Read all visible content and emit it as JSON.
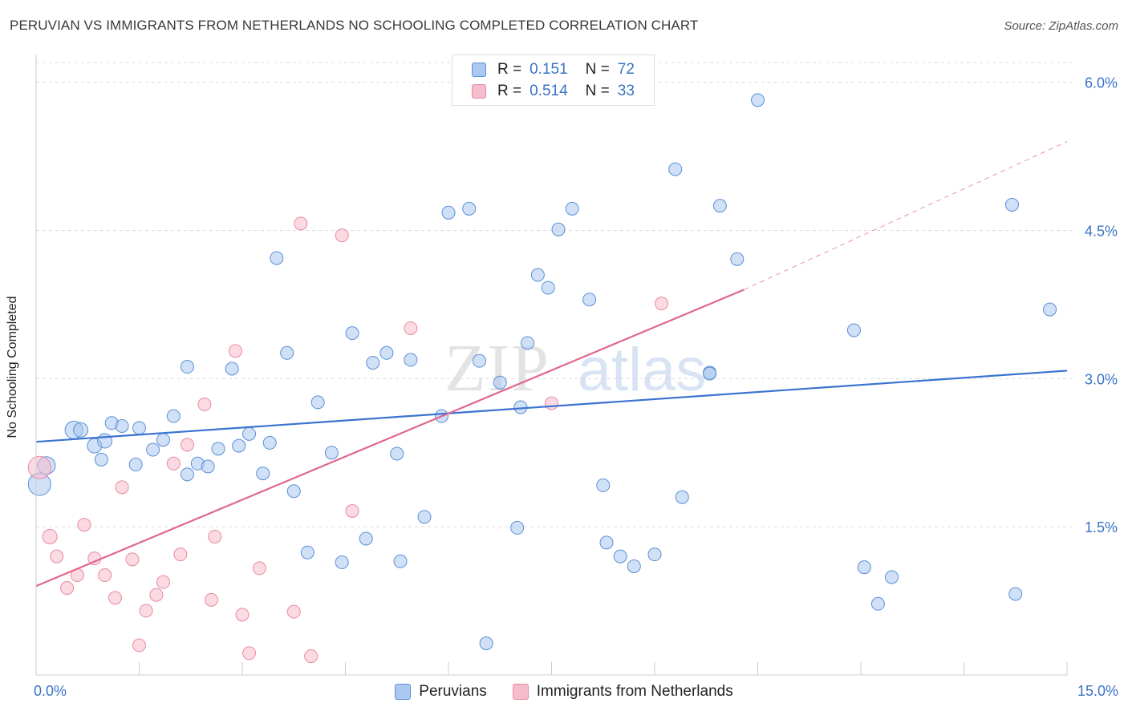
{
  "title": "PERUVIAN VS IMMIGRANTS FROM NETHERLANDS NO SCHOOLING COMPLETED CORRELATION CHART",
  "source": "Source: ZipAtlas.com",
  "watermark": {
    "zip": "ZIP",
    "atlas": "atlas"
  },
  "legend": {
    "rows": [
      {
        "r_label": "R =",
        "r_value": "0.151",
        "n_label": "N =",
        "n_value": "72",
        "fill": "#aac8f0",
        "stroke": "#5b8fd6"
      },
      {
        "r_label": "R =",
        "r_value": "0.514",
        "n_label": "N =",
        "n_value": "33",
        "fill": "#f7bccb",
        "stroke": "#e88aa3"
      }
    ]
  },
  "chart_data": {
    "type": "scatter",
    "xlabel": "",
    "ylabel": "No Schooling Completed",
    "xlim": [
      0,
      15
    ],
    "ylim": [
      0,
      6.2
    ],
    "x_tick_labels": [
      "0.0%",
      "15.0%"
    ],
    "y_ticks": [
      1.5,
      3.0,
      4.5,
      6.0
    ],
    "y_tick_labels": [
      "1.5%",
      "3.0%",
      "4.5%",
      "6.0%"
    ],
    "grid": true,
    "legend_position": "bottom-center",
    "series": [
      {
        "name": "Peruvians",
        "color": "#aac8f0",
        "stroke": "#5b8fd6",
        "line_color": "#3a73d0",
        "trend": {
          "x": [
            0.0,
            15.0
          ],
          "y": [
            2.36,
            3.08
          ],
          "dashed_from": null
        },
        "points": [
          {
            "x": 0.05,
            "y": 1.93,
            "s": 14
          },
          {
            "x": 0.15,
            "y": 2.12,
            "s": 11
          },
          {
            "x": 0.55,
            "y": 2.48,
            "s": 11
          },
          {
            "x": 0.65,
            "y": 2.48,
            "s": 9
          },
          {
            "x": 0.85,
            "y": 2.32,
            "s": 9
          },
          {
            "x": 1.0,
            "y": 2.37,
            "s": 9
          },
          {
            "x": 0.95,
            "y": 2.18,
            "s": 8
          },
          {
            "x": 1.1,
            "y": 2.55,
            "s": 8
          },
          {
            "x": 1.25,
            "y": 2.52,
            "s": 8
          },
          {
            "x": 1.45,
            "y": 2.13,
            "s": 8
          },
          {
            "x": 1.5,
            "y": 2.5,
            "s": 8
          },
          {
            "x": 1.7,
            "y": 2.28,
            "s": 8
          },
          {
            "x": 1.85,
            "y": 2.38,
            "s": 8
          },
          {
            "x": 2.0,
            "y": 2.62,
            "s": 8
          },
          {
            "x": 2.2,
            "y": 3.12,
            "s": 8
          },
          {
            "x": 2.2,
            "y": 2.03,
            "s": 8
          },
          {
            "x": 2.35,
            "y": 2.14,
            "s": 8
          },
          {
            "x": 2.5,
            "y": 2.11,
            "s": 8
          },
          {
            "x": 2.65,
            "y": 2.29,
            "s": 8
          },
          {
            "x": 2.85,
            "y": 3.1,
            "s": 8
          },
          {
            "x": 2.95,
            "y": 2.32,
            "s": 8
          },
          {
            "x": 3.1,
            "y": 2.44,
            "s": 8
          },
          {
            "x": 3.3,
            "y": 2.04,
            "s": 8
          },
          {
            "x": 3.4,
            "y": 2.35,
            "s": 8
          },
          {
            "x": 3.5,
            "y": 4.22,
            "s": 8
          },
          {
            "x": 3.65,
            "y": 3.26,
            "s": 8
          },
          {
            "x": 3.75,
            "y": 1.86,
            "s": 8
          },
          {
            "x": 3.95,
            "y": 1.24,
            "s": 8
          },
          {
            "x": 4.1,
            "y": 2.76,
            "s": 8
          },
          {
            "x": 4.3,
            "y": 2.25,
            "s": 8
          },
          {
            "x": 4.45,
            "y": 1.14,
            "s": 8
          },
          {
            "x": 4.6,
            "y": 3.46,
            "s": 8
          },
          {
            "x": 4.8,
            "y": 1.38,
            "s": 8
          },
          {
            "x": 4.9,
            "y": 3.16,
            "s": 8
          },
          {
            "x": 5.1,
            "y": 3.26,
            "s": 8
          },
          {
            "x": 5.25,
            "y": 2.24,
            "s": 8
          },
          {
            "x": 5.3,
            "y": 1.15,
            "s": 8
          },
          {
            "x": 5.45,
            "y": 3.19,
            "s": 8
          },
          {
            "x": 5.65,
            "y": 1.6,
            "s": 8
          },
          {
            "x": 5.9,
            "y": 2.62,
            "s": 8
          },
          {
            "x": 6.0,
            "y": 4.68,
            "s": 8
          },
          {
            "x": 6.3,
            "y": 4.72,
            "s": 8
          },
          {
            "x": 6.45,
            "y": 3.18,
            "s": 8
          },
          {
            "x": 6.55,
            "y": 0.32,
            "s": 8
          },
          {
            "x": 6.75,
            "y": 2.96,
            "s": 8
          },
          {
            "x": 7.0,
            "y": 1.49,
            "s": 8
          },
          {
            "x": 7.05,
            "y": 2.71,
            "s": 8
          },
          {
            "x": 7.15,
            "y": 3.36,
            "s": 8
          },
          {
            "x": 7.3,
            "y": 4.05,
            "s": 8
          },
          {
            "x": 7.45,
            "y": 3.92,
            "s": 8
          },
          {
            "x": 7.6,
            "y": 4.51,
            "s": 8
          },
          {
            "x": 7.8,
            "y": 4.72,
            "s": 8
          },
          {
            "x": 8.05,
            "y": 3.8,
            "s": 8
          },
          {
            "x": 8.25,
            "y": 1.92,
            "s": 8
          },
          {
            "x": 8.3,
            "y": 1.34,
            "s": 8
          },
          {
            "x": 8.5,
            "y": 1.2,
            "s": 8
          },
          {
            "x": 8.7,
            "y": 1.1,
            "s": 8
          },
          {
            "x": 9.0,
            "y": 1.22,
            "s": 8
          },
          {
            "x": 9.3,
            "y": 5.12,
            "s": 8
          },
          {
            "x": 9.4,
            "y": 1.8,
            "s": 8
          },
          {
            "x": 9.8,
            "y": 3.06,
            "s": 8
          },
          {
            "x": 9.95,
            "y": 4.75,
            "s": 8
          },
          {
            "x": 10.2,
            "y": 4.21,
            "s": 8
          },
          {
            "x": 10.5,
            "y": 5.82,
            "s": 8
          },
          {
            "x": 11.9,
            "y": 3.49,
            "s": 8
          },
          {
            "x": 12.05,
            "y": 1.09,
            "s": 8
          },
          {
            "x": 12.25,
            "y": 0.72,
            "s": 8
          },
          {
            "x": 12.45,
            "y": 0.99,
            "s": 8
          },
          {
            "x": 14.2,
            "y": 4.76,
            "s": 8
          },
          {
            "x": 14.25,
            "y": 0.82,
            "s": 8
          },
          {
            "x": 14.75,
            "y": 3.7,
            "s": 8
          },
          {
            "x": 9.8,
            "y": 3.05,
            "s": 8
          }
        ]
      },
      {
        "name": "Immigrants from Netherlands",
        "color": "#f7bccb",
        "stroke": "#e88aa3",
        "line_color": "#e0678e",
        "trend": {
          "x": [
            0.0,
            10.3
          ],
          "y": [
            0.9,
            3.9
          ],
          "dashed_to": [
            15.0,
            5.4
          ]
        },
        "points": [
          {
            "x": 0.05,
            "y": 2.1,
            "s": 14
          },
          {
            "x": 0.2,
            "y": 1.4,
            "s": 9
          },
          {
            "x": 0.3,
            "y": 1.2,
            "s": 8
          },
          {
            "x": 0.45,
            "y": 0.88,
            "s": 8
          },
          {
            "x": 0.6,
            "y": 1.01,
            "s": 8
          },
          {
            "x": 0.7,
            "y": 1.52,
            "s": 8
          },
          {
            "x": 0.85,
            "y": 1.18,
            "s": 8
          },
          {
            "x": 1.0,
            "y": 1.01,
            "s": 8
          },
          {
            "x": 1.15,
            "y": 0.78,
            "s": 8
          },
          {
            "x": 1.25,
            "y": 1.9,
            "s": 8
          },
          {
            "x": 1.4,
            "y": 1.17,
            "s": 8
          },
          {
            "x": 1.5,
            "y": 0.3,
            "s": 8
          },
          {
            "x": 1.6,
            "y": 0.65,
            "s": 8
          },
          {
            "x": 1.75,
            "y": 0.81,
            "s": 8
          },
          {
            "x": 1.85,
            "y": 0.94,
            "s": 8
          },
          {
            "x": 2.0,
            "y": 2.14,
            "s": 8
          },
          {
            "x": 2.1,
            "y": 1.22,
            "s": 8
          },
          {
            "x": 2.2,
            "y": 2.33,
            "s": 8
          },
          {
            "x": 2.45,
            "y": 2.74,
            "s": 8
          },
          {
            "x": 2.55,
            "y": 0.76,
            "s": 8
          },
          {
            "x": 2.6,
            "y": 1.4,
            "s": 8
          },
          {
            "x": 2.9,
            "y": 3.28,
            "s": 8
          },
          {
            "x": 3.0,
            "y": 0.61,
            "s": 8
          },
          {
            "x": 3.1,
            "y": 0.22,
            "s": 8
          },
          {
            "x": 3.25,
            "y": 1.08,
            "s": 8
          },
          {
            "x": 3.75,
            "y": 0.64,
            "s": 8
          },
          {
            "x": 3.85,
            "y": 4.57,
            "s": 8
          },
          {
            "x": 4.0,
            "y": 0.19,
            "s": 8
          },
          {
            "x": 4.45,
            "y": 4.45,
            "s": 8
          },
          {
            "x": 4.6,
            "y": 1.66,
            "s": 8
          },
          {
            "x": 5.45,
            "y": 3.51,
            "s": 8
          },
          {
            "x": 7.5,
            "y": 2.75,
            "s": 8
          },
          {
            "x": 9.1,
            "y": 3.76,
            "s": 8
          }
        ]
      }
    ]
  }
}
